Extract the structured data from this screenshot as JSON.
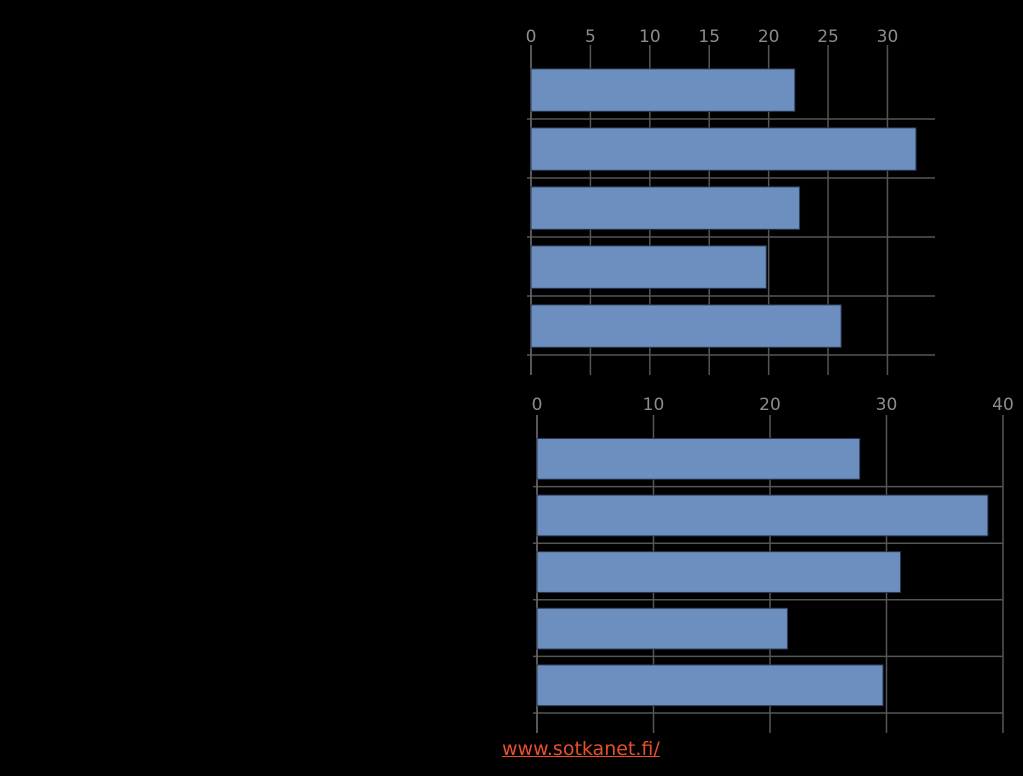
{
  "chart_data": [
    {
      "type": "bar",
      "orientation": "horizontal",
      "categories": [
        null,
        null,
        null,
        null,
        null
      ],
      "values": [
        22.2,
        32.4,
        22.6,
        19.8,
        26.1
      ],
      "color": "#6d8fbf",
      "xlim": [
        0,
        34
      ],
      "xticks": [
        0,
        5,
        10,
        15,
        20,
        25,
        30
      ],
      "grid": true
    },
    {
      "type": "bar",
      "orientation": "horizontal",
      "categories": [
        null,
        null,
        null,
        null,
        null
      ],
      "values": [
        27.7,
        38.7,
        31.2,
        21.5,
        29.7
      ],
      "color": "#6d8fbf",
      "xlim": [
        0,
        40
      ],
      "xticks": [
        0,
        10,
        20,
        30,
        40
      ],
      "grid": true
    }
  ],
  "footer": {
    "link": "www.sotkanet.fi/"
  }
}
